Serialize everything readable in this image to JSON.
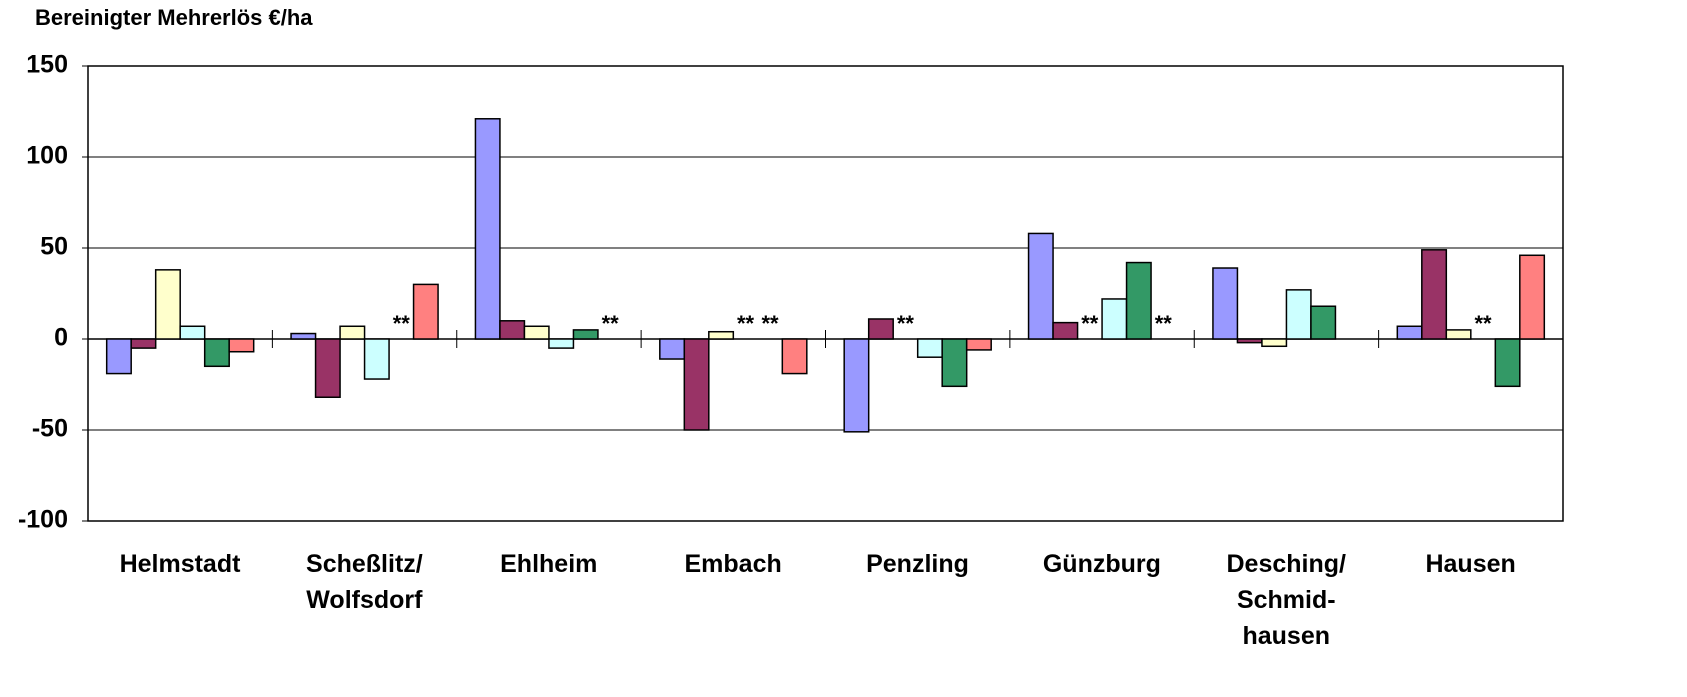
{
  "chart_data": {
    "type": "bar",
    "title": "Bereinigter Mehrerlös €/ha",
    "categories": [
      "Helmstadt",
      "Scheßlitz/\nWolfsdorf",
      "Ehlheim",
      "Embach",
      "Penzling",
      "Günzburg",
      "Desching/\nSchmid-\nhausen",
      "Hausen"
    ],
    "series": [
      {
        "color": "#9999ff",
        "values": [
          -19,
          3,
          121,
          -11,
          -51,
          58,
          39,
          7
        ]
      },
      {
        "color": "#993366",
        "values": [
          -5,
          -32,
          10,
          -50,
          11,
          9,
          -2,
          49
        ]
      },
      {
        "color": "#ffffcc",
        "values": [
          38,
          7,
          7,
          4,
          null,
          null,
          -4,
          5
        ]
      },
      {
        "color": "#ccffff",
        "values": [
          7,
          -22,
          -5,
          null,
          -10,
          22,
          27,
          null
        ]
      },
      {
        "color": "#339966",
        "values": [
          -15,
          null,
          5,
          null,
          -26,
          42,
          18,
          -26
        ]
      },
      {
        "color": "#ff8080",
        "values": [
          -7,
          30,
          null,
          -19,
          -6,
          null,
          0,
          46
        ]
      }
    ],
    "null_label": "**",
    "ylim": [
      -100,
      150
    ],
    "yticks": [
      -100,
      -50,
      0,
      50,
      100,
      150
    ],
    "grid": true
  }
}
